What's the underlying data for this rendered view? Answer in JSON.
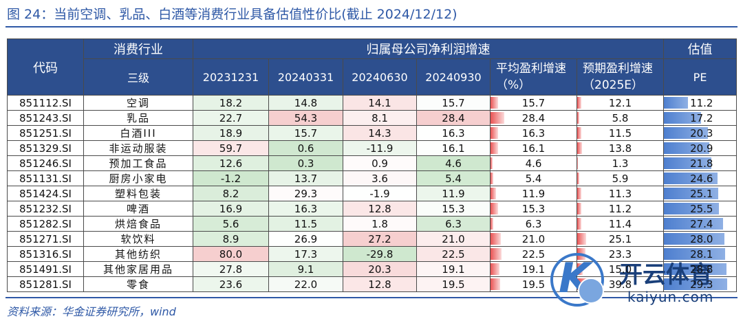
{
  "title": "图 24：当前空调、乳品、白酒等消费行业具备估值性价比(截止 2024/12/12)",
  "header": {
    "code": "代码",
    "industry_top": "消费行业",
    "industry_bottom": "三级",
    "growth_group": "归属母公司净利润增速",
    "valuation_group": "估值",
    "periods": [
      "20231231",
      "20240331",
      "20240630",
      "20240930"
    ],
    "avg_growth": "平均盈利增速（%）",
    "expected_growth": "预期盈利增速（2025E）",
    "pe": "PE"
  },
  "rows": [
    {
      "code": "851112.SI",
      "industry": "空调",
      "g1": "18.2",
      "g2": "14.8",
      "g3": "14.1",
      "g4": "15.7",
      "avg": "15.7",
      "exp": "12.1",
      "pe": "11.2"
    },
    {
      "code": "851243.SI",
      "industry": "乳品",
      "g1": "22.7",
      "g2": "54.3",
      "g3": "8.1",
      "g4": "28.4",
      "avg": "28.4",
      "exp": "5.8",
      "pe": "17.2"
    },
    {
      "code": "851251.SI",
      "industry": "白酒III",
      "g1": "18.9",
      "g2": "15.7",
      "g3": "14.3",
      "g4": "16.3",
      "avg": "16.3",
      "exp": "11.5",
      "pe": "20.3"
    },
    {
      "code": "851329.SI",
      "industry": "非运动服装",
      "g1": "59.7",
      "g2": "0.6",
      "g3": "-11.9",
      "g4": "16.1",
      "avg": "16.1",
      "exp": "13.8",
      "pe": "20.9"
    },
    {
      "code": "851246.SI",
      "industry": "预加工食品",
      "g1": "12.6",
      "g2": "0.3",
      "g3": "0.9",
      "g4": "4.6",
      "avg": "4.6",
      "exp": "1.3",
      "pe": "21.8"
    },
    {
      "code": "851131.SI",
      "industry": "厨房小家电",
      "g1": "-1.2",
      "g2": "13.7",
      "g3": "3.6",
      "g4": "5.4",
      "avg": "5.4",
      "exp": "5.9",
      "pe": "24.6"
    },
    {
      "code": "851424.SI",
      "industry": "塑料包装",
      "g1": "8.2",
      "g2": "29.3",
      "g3": "-1.9",
      "g4": "11.9",
      "avg": "11.9",
      "exp": "11.3",
      "pe": "25.1"
    },
    {
      "code": "851232.SI",
      "industry": "啤酒",
      "g1": "16.9",
      "g2": "16.3",
      "g3": "12.8",
      "g4": "15.3",
      "avg": "15.3",
      "exp": "11.2",
      "pe": "25.5"
    },
    {
      "code": "851282.SI",
      "industry": "烘焙食品",
      "g1": "5.6",
      "g2": "11.5",
      "g3": "1.8",
      "g4": "6.3",
      "avg": "6.3",
      "exp": "11.4",
      "pe": "27.4"
    },
    {
      "code": "851271.SI",
      "industry": "软饮料",
      "g1": "8.9",
      "g2": "26.9",
      "g3": "27.2",
      "g4": "21.0",
      "avg": "21.0",
      "exp": "25.1",
      "pe": "28.0"
    },
    {
      "code": "851316.SI",
      "industry": "其他纺织",
      "g1": "80.0",
      "g2": "17.3",
      "g3": "-29.8",
      "g4": "22.5",
      "avg": "22.5",
      "exp": "23.3",
      "pe": "28.1"
    },
    {
      "code": "851491.SI",
      "industry": "其他家居用品",
      "g1": "27.8",
      "g2": "9.1",
      "g3": "20.3",
      "g4": "19.1",
      "avg": "19.1",
      "exp": "15.0",
      "pe": "28.8"
    },
    {
      "code": "851281.SI",
      "industry": "零食",
      "g1": "23.6",
      "g2": "22.0",
      "g3": "12.8",
      "g4": "19.5",
      "avg": "19.5",
      "exp": "39.8",
      "pe": "29.3"
    }
  ],
  "colors": {
    "header_bg": "#2d4f8e",
    "title": "#2e58a6",
    "bar_red": "#e95353",
    "bar_blue": "#4e7fcf",
    "heat_high": "#f6cfcf",
    "heat_low": "#cfe8cf"
  },
  "source": "资料来源：华金证券研究所，wind",
  "watermark": {
    "logo_cn": "开云体育",
    "logo_en": "kaiyun.com"
  }
}
